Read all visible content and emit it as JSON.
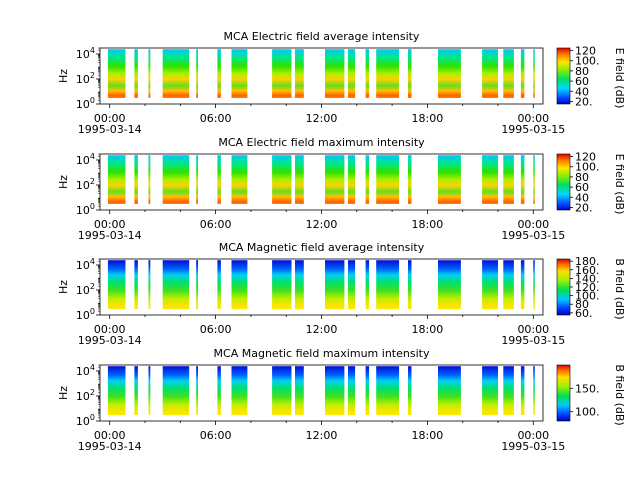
{
  "chart_data": [
    {
      "type": "heatmap",
      "title": "MCA  Electric field average intensity",
      "ylabel": "Hz",
      "y_scale": "log",
      "ylim": [
        1,
        30000
      ],
      "y_ticks": [
        {
          "base": "10",
          "exp": "0"
        },
        {
          "base": "10",
          "exp": "2"
        },
        {
          "base": "10",
          "exp": "4"
        }
      ],
      "x_ticks": [
        "00:00",
        "06:00",
        "12:00",
        "18:00",
        "00:00"
      ],
      "x_dates": [
        "1995-03-14",
        "1995-03-15"
      ],
      "colorbar": {
        "label": "E field (dB)",
        "range": [
          15,
          125
        ],
        "ticks": [
          "20.",
          "40",
          "60",
          "80",
          "100.",
          "120"
        ]
      },
      "scheme": "electric",
      "data_segments_hours": [
        [
          -0.1,
          0.9
        ],
        [
          1.4,
          1.6
        ],
        [
          2.2,
          2.3
        ],
        [
          3.0,
          4.5
        ],
        [
          4.9,
          5.0
        ],
        [
          6.1,
          6.3
        ],
        [
          6.9,
          7.8
        ],
        [
          9.2,
          10.3
        ],
        [
          10.5,
          11.0
        ],
        [
          12.2,
          13.3
        ],
        [
          13.5,
          13.9
        ],
        [
          14.5,
          14.7
        ],
        [
          15.1,
          16.4
        ],
        [
          16.9,
          17.1
        ],
        [
          18.6,
          19.9
        ],
        [
          21.1,
          22.0
        ],
        [
          22.3,
          22.9
        ],
        [
          23.3,
          23.5
        ],
        [
          24.0,
          24.0
        ]
      ]
    },
    {
      "type": "heatmap",
      "title": "MCA  Electric field maximum intensity",
      "ylabel": "Hz",
      "y_scale": "log",
      "ylim": [
        1,
        30000
      ],
      "y_ticks": [
        {
          "base": "10",
          "exp": "0"
        },
        {
          "base": "10",
          "exp": "2"
        },
        {
          "base": "10",
          "exp": "4"
        }
      ],
      "x_ticks": [
        "00:00",
        "06:00",
        "12:00",
        "18:00",
        "00:00"
      ],
      "x_dates": [
        "1995-03-14",
        "1995-03-15"
      ],
      "colorbar": {
        "label": "E field (dB)",
        "range": [
          15,
          125
        ],
        "ticks": [
          "20.",
          "40",
          "60",
          "80",
          "100.",
          "120"
        ]
      },
      "scheme": "electric",
      "data_segments_hours": [
        [
          -0.1,
          0.9
        ],
        [
          1.4,
          1.6
        ],
        [
          2.2,
          2.3
        ],
        [
          3.0,
          4.5
        ],
        [
          4.9,
          5.0
        ],
        [
          6.1,
          6.3
        ],
        [
          6.9,
          7.8
        ],
        [
          9.2,
          10.3
        ],
        [
          10.5,
          11.0
        ],
        [
          12.2,
          13.3
        ],
        [
          13.5,
          13.9
        ],
        [
          14.5,
          14.7
        ],
        [
          15.1,
          16.4
        ],
        [
          16.9,
          17.1
        ],
        [
          18.6,
          19.9
        ],
        [
          21.1,
          22.0
        ],
        [
          22.3,
          22.9
        ],
        [
          23.3,
          23.5
        ],
        [
          24.0,
          24.0
        ]
      ]
    },
    {
      "type": "heatmap",
      "title": "MCA  Magnetic field average intensity",
      "ylabel": "Hz",
      "y_scale": "log",
      "ylim": [
        1,
        30000
      ],
      "y_ticks": [
        {
          "base": "10",
          "exp": "0"
        },
        {
          "base": "10",
          "exp": "2"
        },
        {
          "base": "10",
          "exp": "4"
        }
      ],
      "x_ticks": [
        "00:00",
        "06:00",
        "12:00",
        "18:00",
        "00:00"
      ],
      "x_dates": [
        "1995-03-14",
        "1995-03-15"
      ],
      "colorbar": {
        "label": "B field (dB)",
        "range": [
          55,
          185
        ],
        "ticks": [
          "60.",
          "80",
          "100.",
          "120.",
          "140.",
          "160.",
          "180."
        ]
      },
      "scheme": "magnetic",
      "data_segments_hours": [
        [
          -0.1,
          0.9
        ],
        [
          1.4,
          1.6
        ],
        [
          2.2,
          2.3
        ],
        [
          3.0,
          4.5
        ],
        [
          4.9,
          5.0
        ],
        [
          6.1,
          6.3
        ],
        [
          6.9,
          7.8
        ],
        [
          9.2,
          10.3
        ],
        [
          10.5,
          11.0
        ],
        [
          12.2,
          13.3
        ],
        [
          13.5,
          13.9
        ],
        [
          14.5,
          14.7
        ],
        [
          15.1,
          16.4
        ],
        [
          16.9,
          17.1
        ],
        [
          18.6,
          19.9
        ],
        [
          21.1,
          22.0
        ],
        [
          22.3,
          22.9
        ],
        [
          23.3,
          23.5
        ],
        [
          24.0,
          24.0
        ]
      ]
    },
    {
      "type": "heatmap",
      "title": "MCA  Magnetic field maximum intensity",
      "ylabel": "Hz",
      "y_scale": "log",
      "ylim": [
        1,
        30000
      ],
      "y_ticks": [
        {
          "base": "10",
          "exp": "0"
        },
        {
          "base": "10",
          "exp": "2"
        },
        {
          "base": "10",
          "exp": "4"
        }
      ],
      "x_ticks": [
        "00:00",
        "06:00",
        "12:00",
        "18:00",
        "00:00"
      ],
      "x_dates": [
        "1995-03-14",
        "1995-03-15"
      ],
      "colorbar": {
        "label": "B field (dB)",
        "range": [
          80,
          200
        ],
        "ticks": [
          "100.",
          "150."
        ]
      },
      "scheme": "magnetic",
      "data_segments_hours": [
        [
          -0.1,
          0.9
        ],
        [
          1.4,
          1.6
        ],
        [
          2.2,
          2.3
        ],
        [
          3.0,
          4.5
        ],
        [
          4.9,
          5.0
        ],
        [
          6.1,
          6.3
        ],
        [
          6.9,
          7.8
        ],
        [
          9.2,
          10.3
        ],
        [
          10.5,
          11.0
        ],
        [
          12.2,
          13.3
        ],
        [
          13.5,
          13.9
        ],
        [
          14.5,
          14.7
        ],
        [
          15.1,
          16.4
        ],
        [
          16.9,
          17.1
        ],
        [
          18.6,
          19.9
        ],
        [
          21.1,
          22.0
        ],
        [
          22.3,
          22.9
        ],
        [
          23.3,
          23.5
        ],
        [
          24.0,
          24.0
        ]
      ]
    }
  ]
}
